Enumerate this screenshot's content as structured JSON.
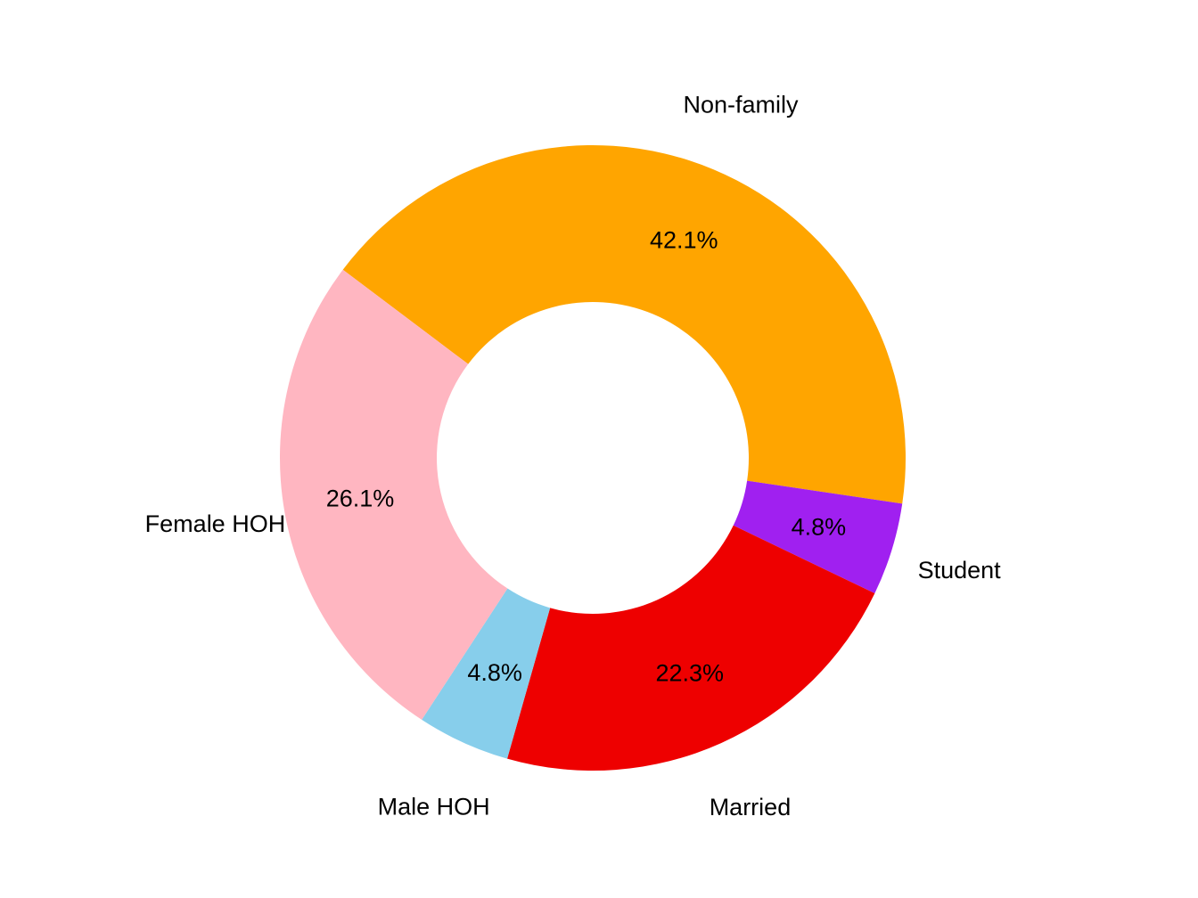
{
  "chart_data": {
    "type": "pie",
    "donut": true,
    "title": "",
    "slices": [
      {
        "label": "Non-family",
        "value": 42.1,
        "value_label": "42.1%",
        "color": "#FFA500"
      },
      {
        "label": "Student",
        "value": 4.8,
        "value_label": "4.8%",
        "color": "#A020F0"
      },
      {
        "label": "Married",
        "value": 22.3,
        "value_label": "22.3%",
        "color": "#EE0000"
      },
      {
        "label": "Male HOH",
        "value": 4.8,
        "value_label": "4.8%",
        "color": "#87CEEB"
      },
      {
        "label": "Female HOH",
        "value": 26.1,
        "value_label": "26.1%",
        "color": "#FFB6C1"
      }
    ],
    "legend": "none"
  }
}
